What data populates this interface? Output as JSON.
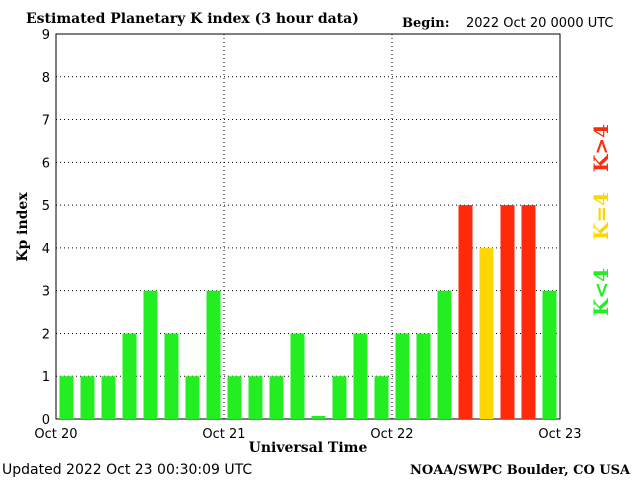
{
  "header": {
    "title": "Estimated Planetary K index (3 hour data)",
    "begin_label": "Begin:",
    "begin_value": "2022 Oct 20 0000 UTC"
  },
  "footer": {
    "updated": "Updated 2022 Oct 23 00:30:09 UTC",
    "source": "NOAA/SWPC Boulder, CO USA"
  },
  "legend": {
    "low": "K<4",
    "mid": "K=4",
    "high": "K>4"
  },
  "colors": {
    "low": "#22ee22",
    "mid": "#ffd700",
    "high": "#ff2a0a"
  },
  "chart_data": {
    "type": "bar",
    "title": "Estimated Planetary K index (3 hour data)",
    "xlabel": "Universal Time",
    "ylabel": "Kp index",
    "ylim": [
      0,
      9
    ],
    "yticks": [
      "0",
      "1",
      "2",
      "3",
      "4",
      "5",
      "6",
      "7",
      "8",
      "9"
    ],
    "xticks": [
      "Oct 20",
      "Oct 21",
      "Oct 22",
      "Oct 23"
    ],
    "grid": true,
    "bar_slots": 24,
    "values": [
      1,
      1,
      1,
      2,
      3,
      2,
      1,
      3,
      1,
      1,
      1,
      2,
      0.07,
      1,
      2,
      1,
      2,
      2,
      3,
      5,
      4,
      5,
      5,
      3
    ]
  }
}
